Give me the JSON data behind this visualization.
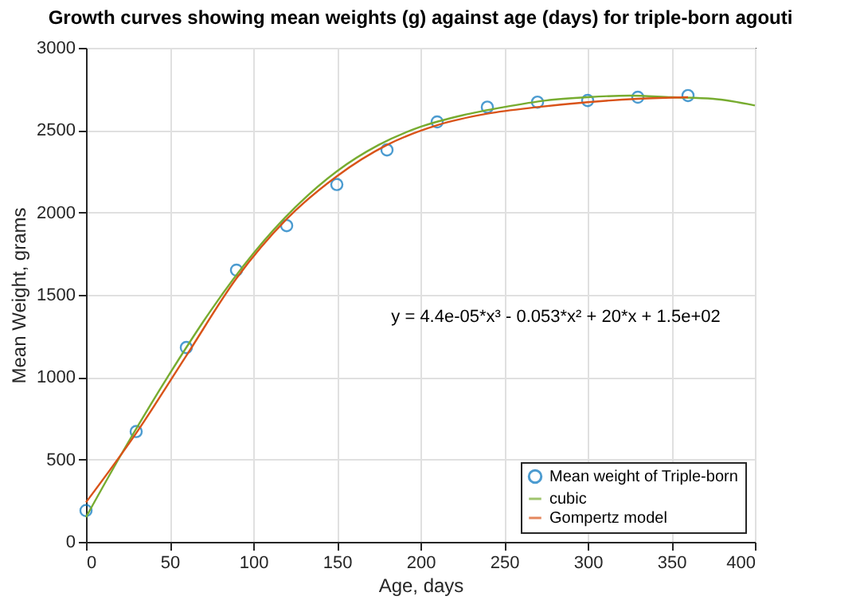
{
  "chart_data": {
    "type": "scatter",
    "title": "Growth curves showing mean weights (g) against age (days) for triple-born agouti",
    "xlabel": "Age, days",
    "ylabel": "Mean Weight, grams",
    "annotations": [
      "y = 4.4e-05*x³ - 0.053*x² + 20*x + 1.5e+02"
    ],
    "series": [
      {
        "name": "Mean weight of Triple-born",
        "marker": "circle",
        "color": "#0072bd",
        "x": [
          0,
          30,
          60,
          90,
          120,
          150,
          180,
          210,
          240,
          270,
          300,
          330,
          360
        ],
        "values": [
          190,
          670,
          1180,
          1650,
          1920,
          2170,
          2380,
          2550,
          2640,
          2670,
          2680,
          2700,
          2710
        ]
      },
      {
        "name": "cubic",
        "type": "line",
        "marker": "none",
        "color": "#77ac30",
        "x": [
          0,
          25,
          50,
          75,
          100,
          125,
          150,
          175,
          200,
          225,
          250,
          275,
          300,
          325,
          350,
          375,
          400
        ],
        "values": [
          150,
          600,
          1020,
          1410,
          1750,
          2030,
          2250,
          2410,
          2520,
          2590,
          2640,
          2680,
          2700,
          2710,
          2700,
          2690,
          2650
        ]
      },
      {
        "name": "Gompertz model",
        "type": "line",
        "marker": "none",
        "color": "#d95319",
        "x": [
          0,
          30,
          60,
          90,
          120,
          150,
          180,
          210,
          240,
          270,
          300,
          330,
          360
        ],
        "values": [
          240,
          660,
          1130,
          1600,
          1960,
          2220,
          2410,
          2530,
          2600,
          2640,
          2670,
          2690,
          2700
        ]
      }
    ],
    "xlim": [
      0,
      400
    ],
    "xticks": [
      0,
      50,
      100,
      150,
      200,
      250,
      300,
      350,
      400
    ],
    "ylim": [
      0,
      3000
    ],
    "yticks": [
      0,
      500,
      1000,
      1500,
      2000,
      2500,
      3000
    ],
    "grid": true,
    "legend": "bottom right"
  }
}
